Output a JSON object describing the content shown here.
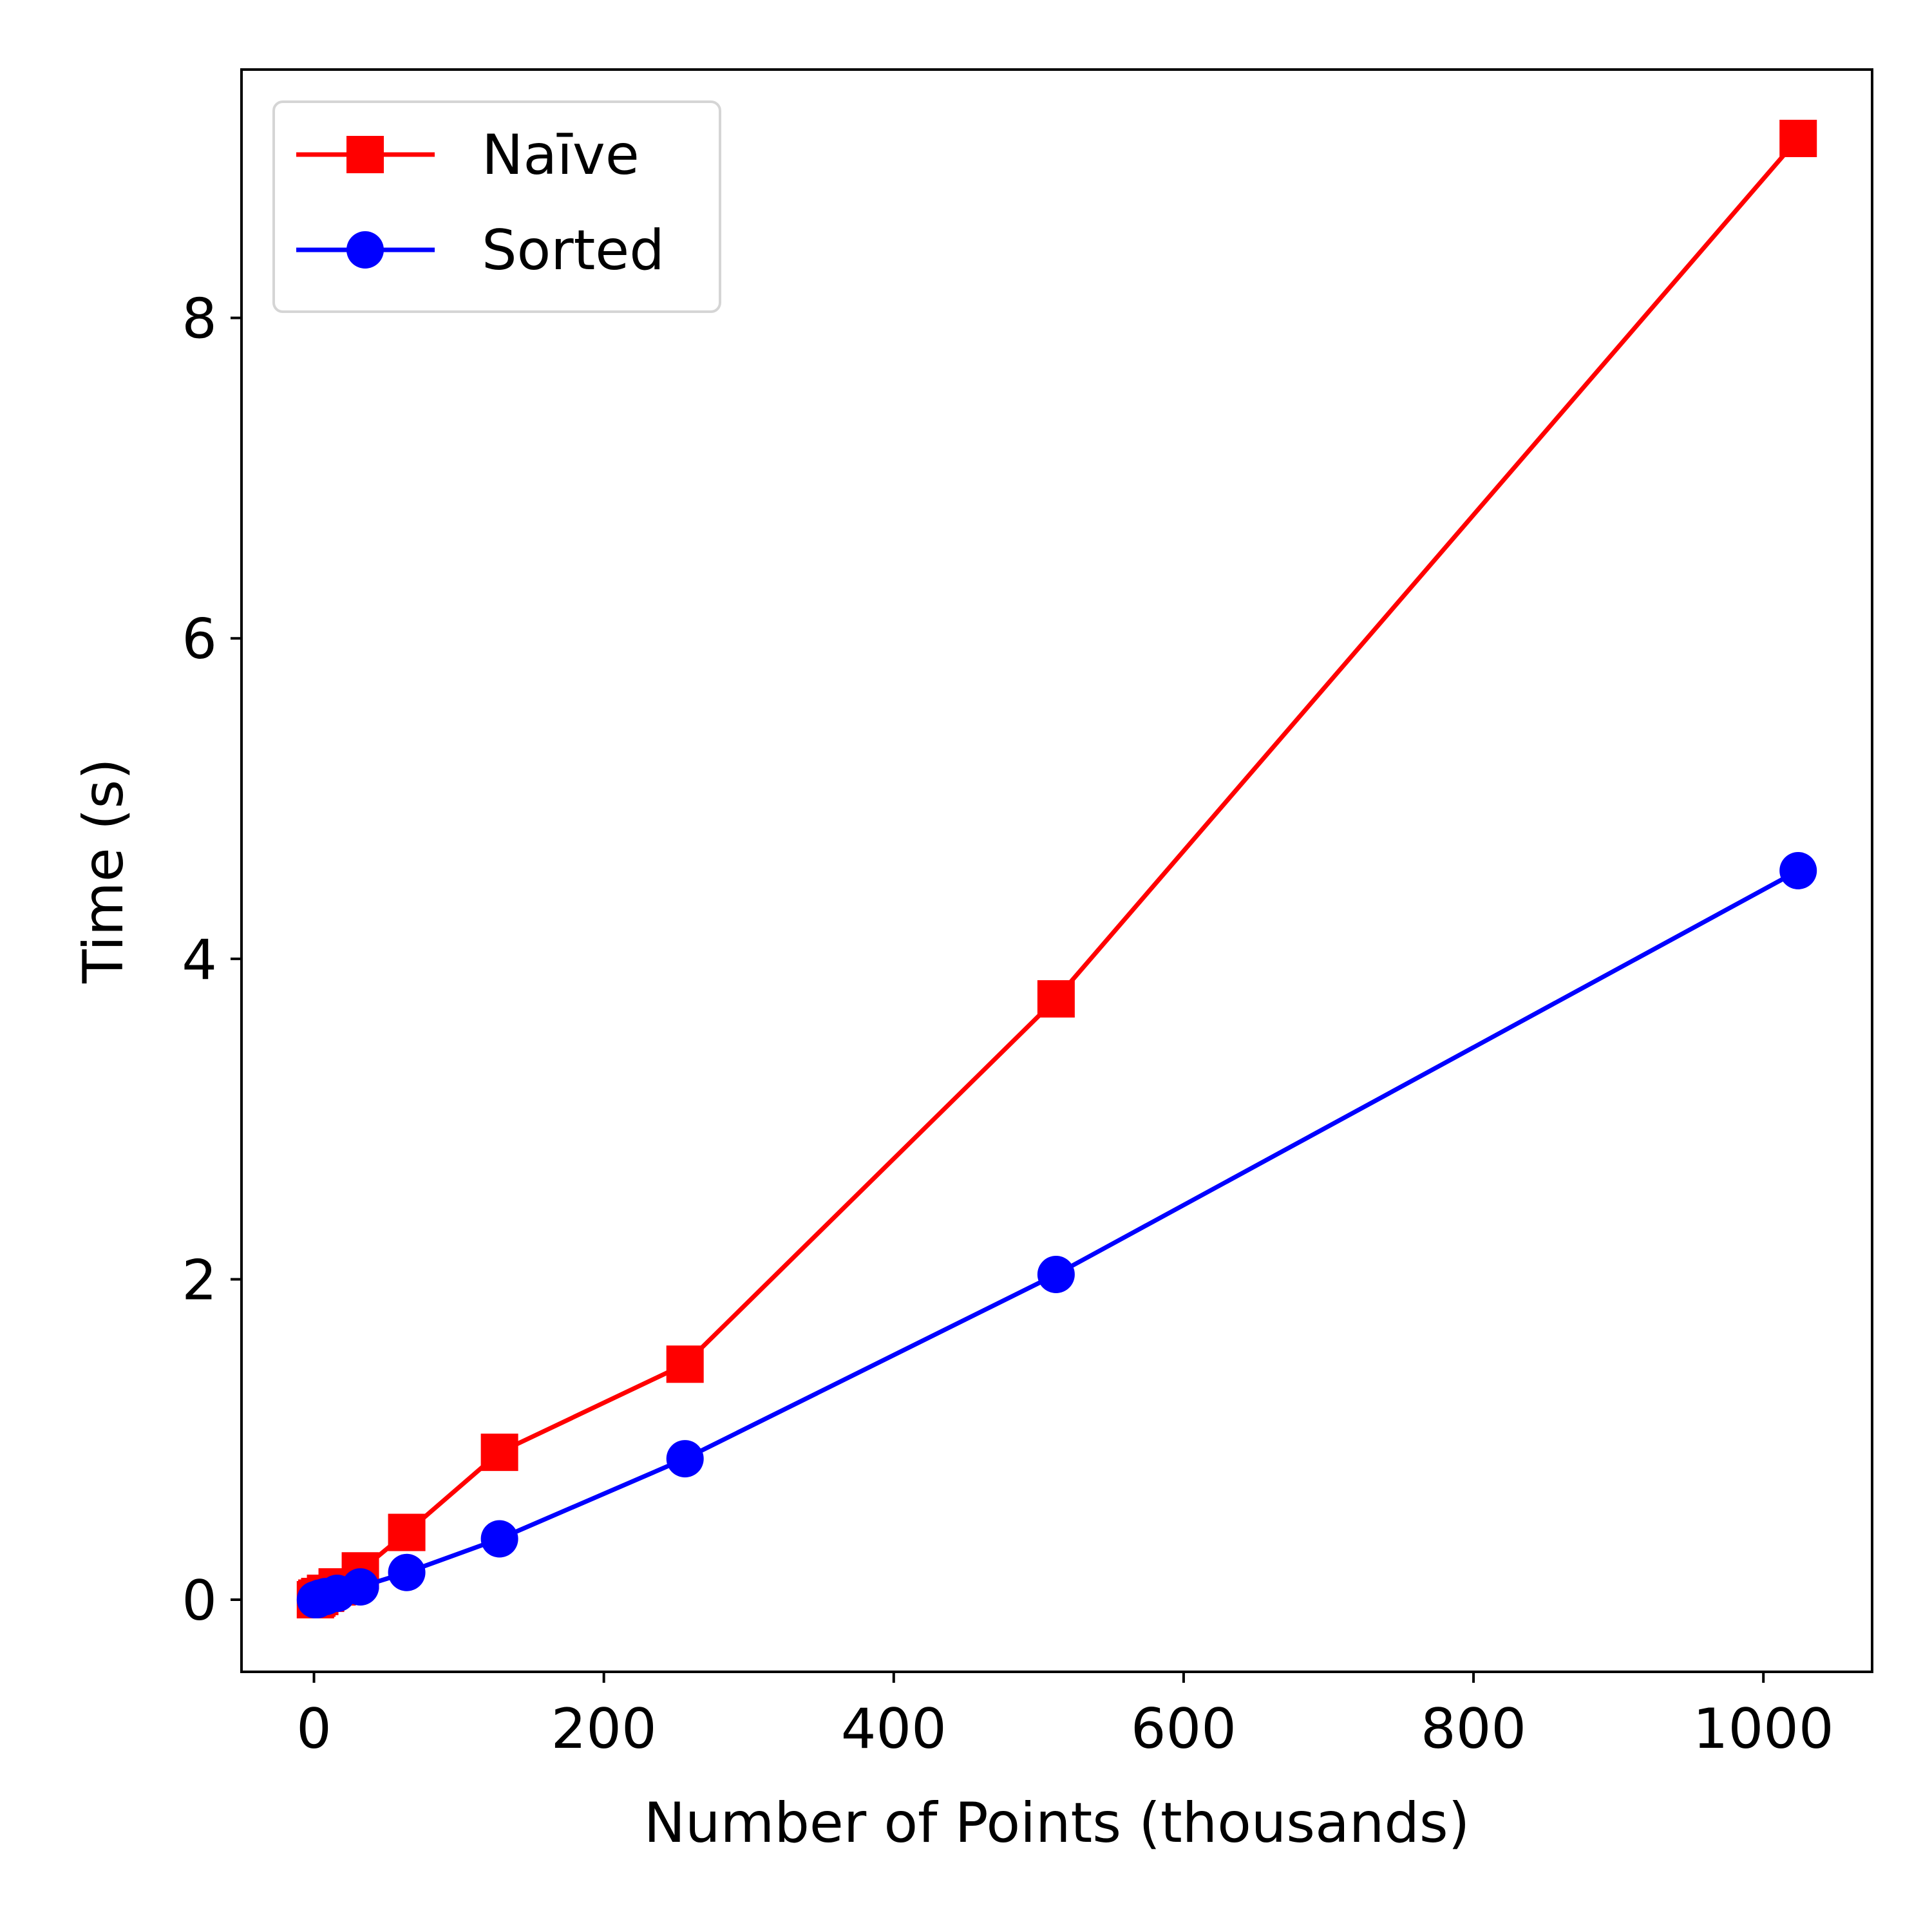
{
  "chart_data": {
    "type": "line",
    "xlabel": "Number of Points (thousands)",
    "ylabel": "Time (s)",
    "xlim": [
      -50,
      1075
    ],
    "ylim": [
      -0.45,
      9.55
    ],
    "xticks": [
      0,
      200,
      400,
      600,
      800,
      1000
    ],
    "yticks": [
      0,
      2,
      4,
      6,
      8
    ],
    "xtick_labels": [
      "0",
      "200",
      "400",
      "600",
      "800",
      "1000"
    ],
    "ytick_labels": [
      "0",
      "2",
      "4",
      "6",
      "8"
    ],
    "grid": false,
    "legend_position": "top-left",
    "series": [
      {
        "name": "Naīve",
        "color": "#ff0000",
        "marker": "square",
        "x": [
          1,
          2,
          4,
          8,
          16,
          32,
          64,
          128,
          256,
          512,
          1024
        ],
        "y": [
          0.0,
          0.01,
          0.02,
          0.04,
          0.08,
          0.18,
          0.42,
          0.92,
          1.47,
          3.75,
          9.12
        ]
      },
      {
        "name": "Sorted",
        "color": "#0000ff",
        "marker": "circle",
        "x": [
          1,
          2,
          4,
          8,
          16,
          32,
          64,
          128,
          256,
          512,
          1024
        ],
        "y": [
          0.0,
          0.0,
          0.01,
          0.02,
          0.04,
          0.08,
          0.17,
          0.38,
          0.88,
          2.03,
          4.55
        ]
      }
    ]
  }
}
